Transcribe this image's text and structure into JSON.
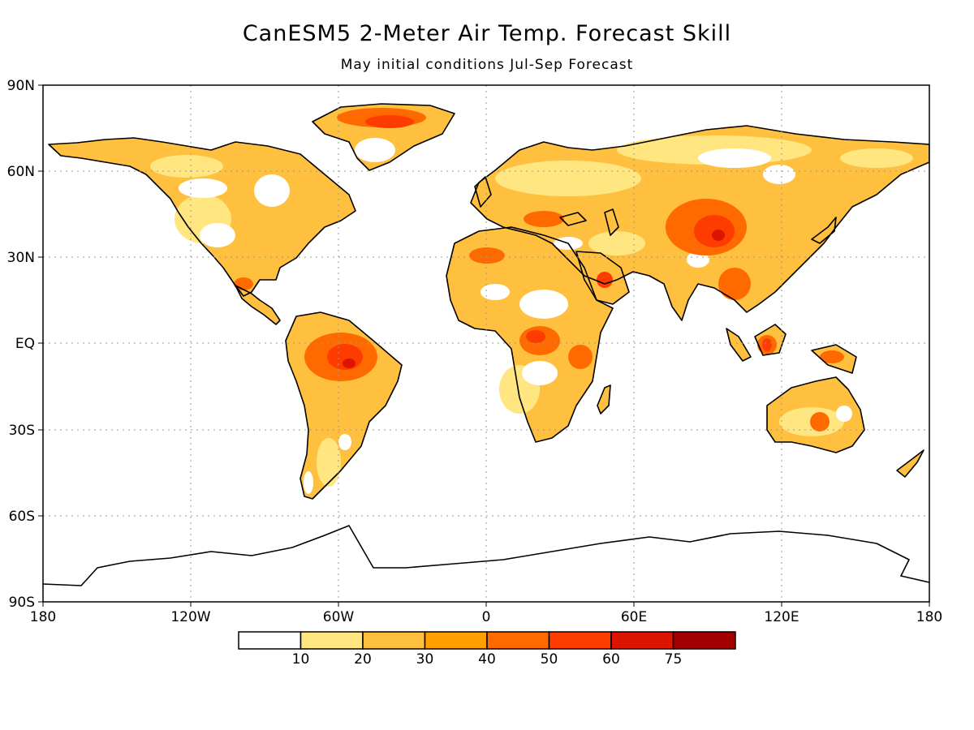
{
  "title": "CanESM5 2-Meter Air Temp. Forecast Skill",
  "subtitle": "May initial conditions   Jul-Sep Forecast",
  "map": {
    "projection": "equirectangular",
    "lon_range": [
      -180,
      180
    ],
    "lat_range": [
      -90,
      90
    ],
    "grid": true,
    "x_ticks": [
      "180",
      "120W",
      "60W",
      "0",
      "60E",
      "120E",
      "180"
    ],
    "y_ticks": [
      "90N",
      "60N",
      "30N",
      "EQ",
      "30S",
      "60S",
      "90S"
    ]
  },
  "colorbar": {
    "labels": [
      "10",
      "20",
      "30",
      "40",
      "50",
      "60",
      "75"
    ],
    "colors": [
      "#ffffff",
      "#ffe680",
      "#ffc040",
      "#ffa000",
      "#ff6a00",
      "#ff3c00",
      "#dc1400",
      "#a00000"
    ]
  },
  "icons": {
    "coastline": "continent-outline"
  }
}
